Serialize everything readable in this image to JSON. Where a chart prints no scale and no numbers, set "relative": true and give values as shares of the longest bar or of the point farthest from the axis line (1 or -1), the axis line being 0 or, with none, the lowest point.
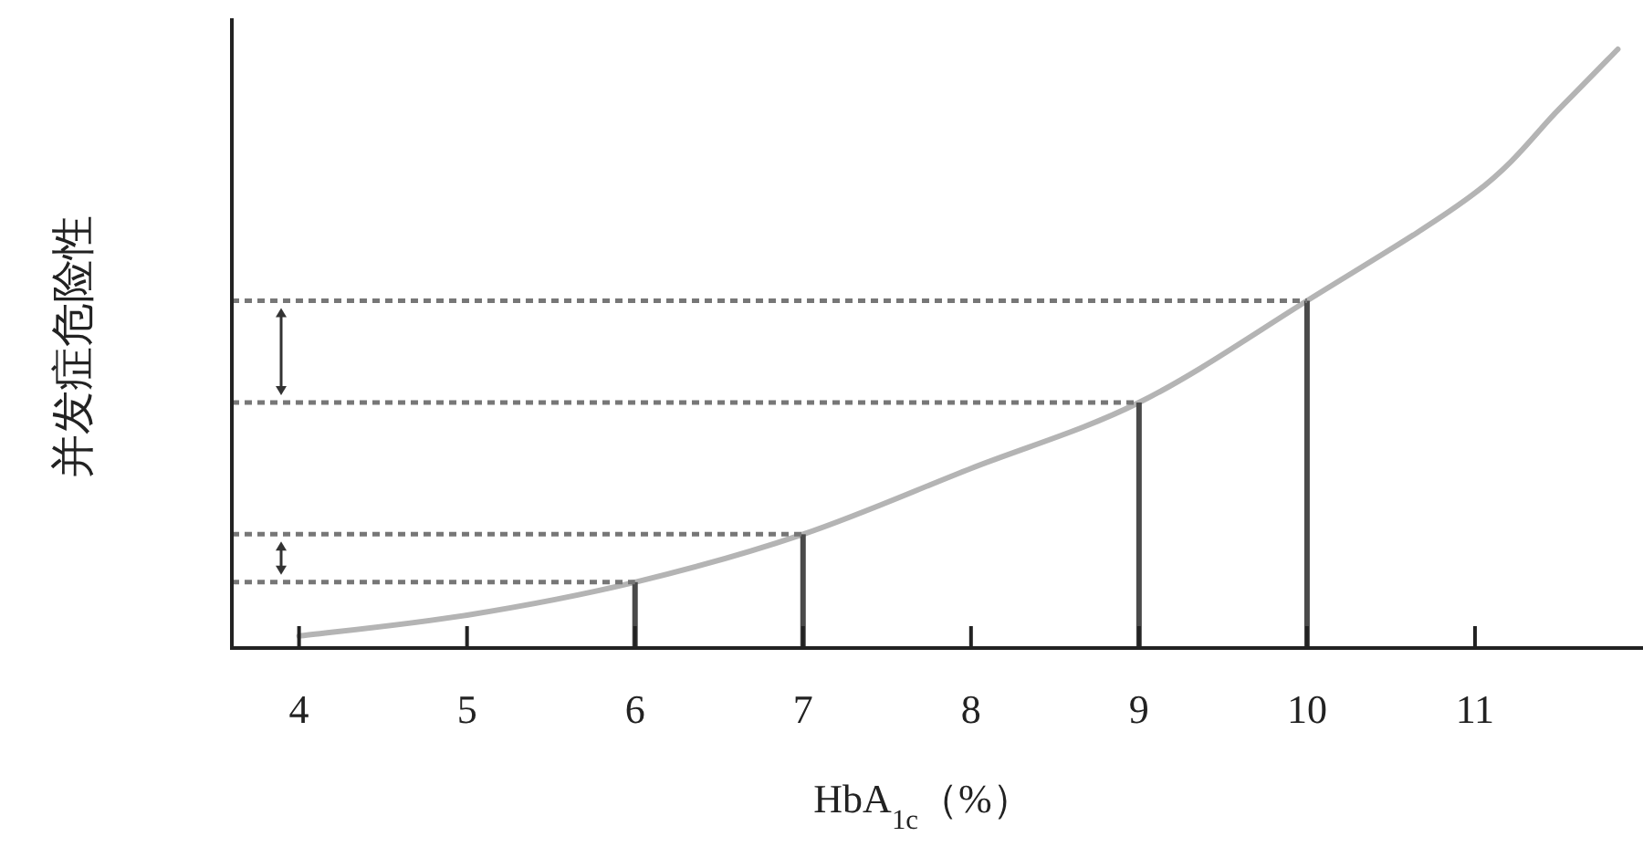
{
  "chart_data": {
    "type": "line",
    "relative": true,
    "xlabel": "HbA$_{1c}$（%）",
    "ylabel": "并发症危险性",
    "xlim": [
      3.6,
      12.0
    ],
    "xticks": [
      4,
      5,
      6,
      7,
      8,
      9,
      10,
      11
    ],
    "series": [
      {
        "color": "#b4b4b4",
        "x": [
          4,
          5,
          6,
          7,
          8,
          9,
          10,
          11,
          11.5,
          11.85
        ],
        "values": [
          0.02,
          0.055,
          0.11,
          0.19,
          0.3,
          0.41,
          0.58,
          0.76,
          0.9,
          1.0
        ]
      },
      {
        "type": "bar",
        "color": "#4a4a4a",
        "x": [
          6,
          7,
          9,
          10
        ],
        "values": [
          0.11,
          0.19,
          0.41,
          0.58
        ]
      }
    ],
    "ref_lines": [
      {
        "axis": "y",
        "value": 0.58,
        "color": "#777777",
        "line_style": "dotted"
      },
      {
        "axis": "y",
        "value": 0.41,
        "color": "#777777",
        "line_style": "dotted"
      },
      {
        "axis": "y",
        "value": 0.19,
        "color": "#777777",
        "line_style": "dotted"
      },
      {
        "axis": "y",
        "value": 0.11,
        "color": "#777777",
        "line_style": "dotted"
      }
    ]
  }
}
